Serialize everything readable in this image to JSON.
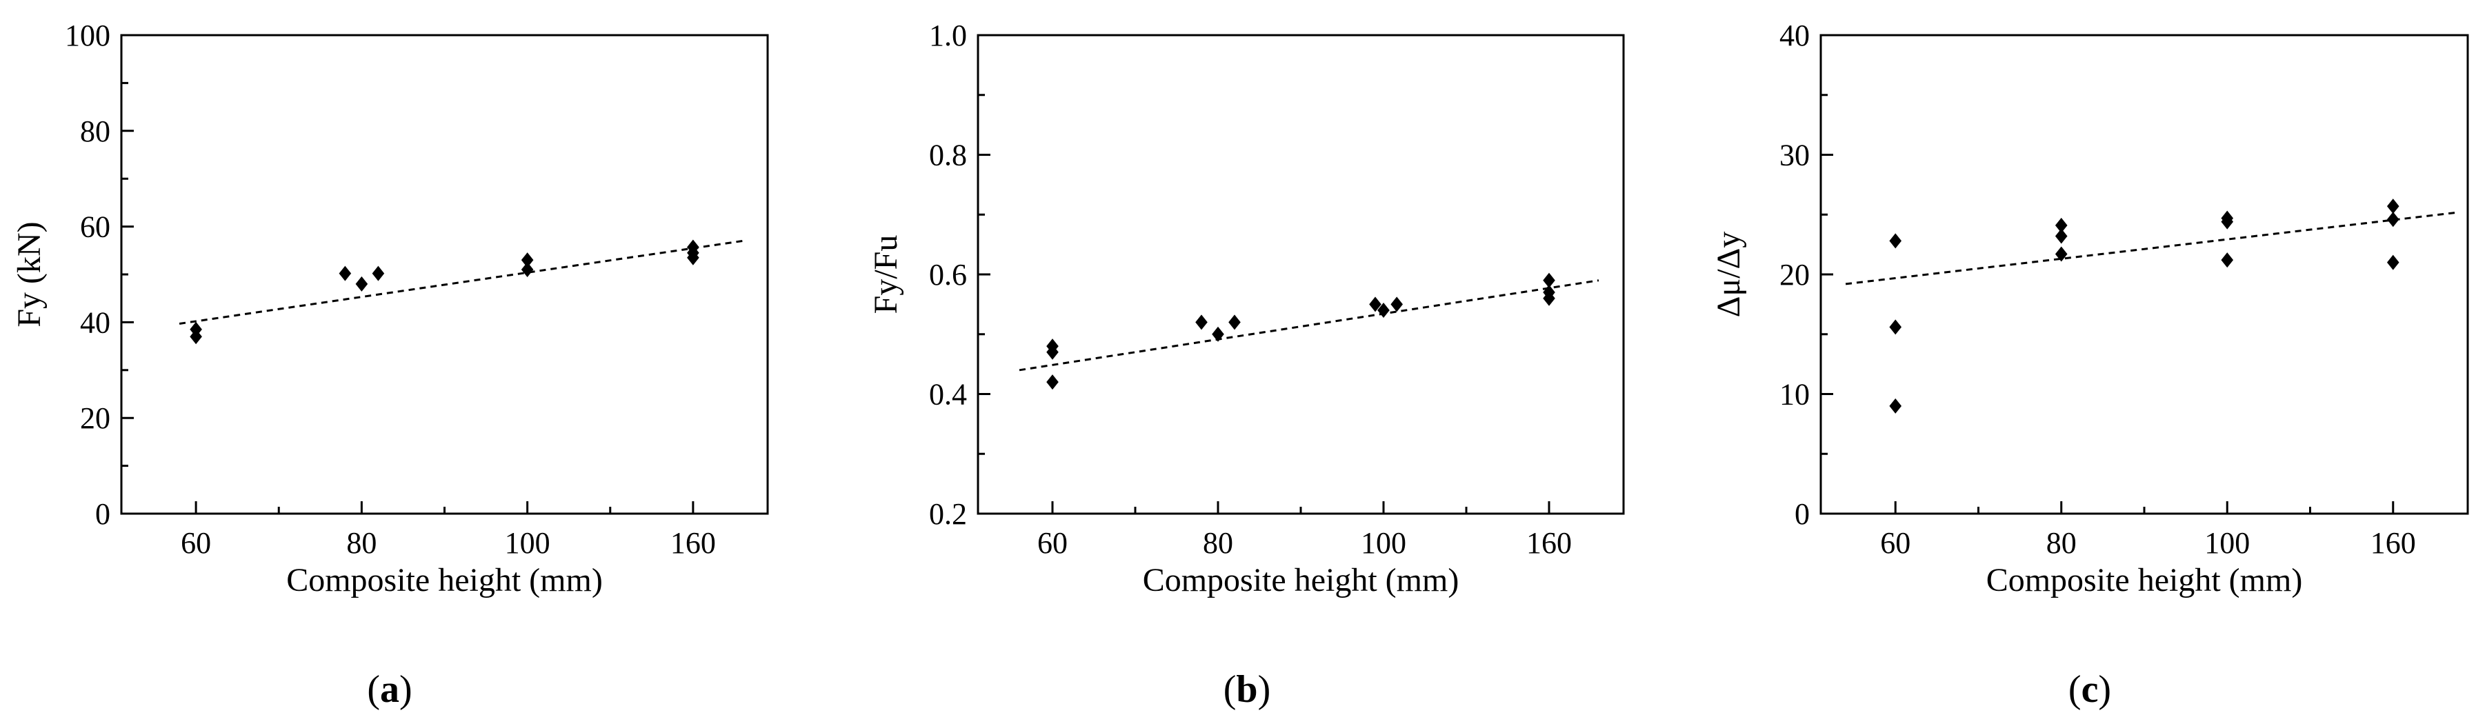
{
  "chart_data": [
    {
      "type": "scatter",
      "panel": "a",
      "panel_label": "(a)",
      "panel_open": "(",
      "panel_letter": "a",
      "panel_close": ")",
      "xlabel": "Composite height (mm)",
      "ylabel": "Fy (kN)",
      "x_categories": [
        "60",
        "80",
        "100",
        "160"
      ],
      "xlim": [
        -0.45,
        3.45
      ],
      "ylim": [
        0,
        100
      ],
      "yticks": [
        0,
        20,
        40,
        60,
        80,
        100
      ],
      "ytick_labels": [
        "0",
        "20",
        "40",
        "60",
        "80",
        "100"
      ],
      "points": [
        {
          "x": 0,
          "y": 38.5
        },
        {
          "x": 0,
          "y": 37
        },
        {
          "x": 0.9,
          "y": 50.2
        },
        {
          "x": 1,
          "y": 48
        },
        {
          "x": 1.1,
          "y": 50.2
        },
        {
          "x": 2,
          "y": 53
        },
        {
          "x": 2,
          "y": 51
        },
        {
          "x": 3,
          "y": 55.7
        },
        {
          "x": 3,
          "y": 54.5
        },
        {
          "x": 3,
          "y": 53.5
        }
      ],
      "fit": {
        "x": [
          -0.1,
          3.3
        ],
        "y": [
          39.7,
          57
        ]
      },
      "color": "#000000"
    },
    {
      "type": "scatter",
      "panel": "b",
      "panel_label": "(b)",
      "panel_open": "(",
      "panel_letter": "b",
      "panel_close": ")",
      "xlabel": "Composite height (mm)",
      "ylabel": "Fy/Fu",
      "x_categories": [
        "60",
        "80",
        "100",
        "160"
      ],
      "xlim": [
        -0.45,
        3.45
      ],
      "ylim": [
        0.2,
        1.0
      ],
      "yticks": [
        0.2,
        0.4,
        0.6,
        0.8,
        1.0
      ],
      "ytick_labels": [
        "0.2",
        "0.4",
        "0.6",
        "0.8",
        "1.0"
      ],
      "points": [
        {
          "x": 0,
          "y": 0.48
        },
        {
          "x": 0,
          "y": 0.47
        },
        {
          "x": 0,
          "y": 0.42
        },
        {
          "x": 0.9,
          "y": 0.52
        },
        {
          "x": 1,
          "y": 0.5
        },
        {
          "x": 1.1,
          "y": 0.52
        },
        {
          "x": 1.95,
          "y": 0.55
        },
        {
          "x": 2,
          "y": 0.54
        },
        {
          "x": 2.08,
          "y": 0.55
        },
        {
          "x": 3,
          "y": 0.59
        },
        {
          "x": 3,
          "y": 0.57
        },
        {
          "x": 3,
          "y": 0.56
        }
      ],
      "fit": {
        "x": [
          -0.2,
          3.3
        ],
        "y": [
          0.44,
          0.59
        ]
      },
      "color": "#000000"
    },
    {
      "type": "scatter",
      "panel": "c",
      "panel_label": "(c)",
      "panel_open": "(",
      "panel_letter": "c",
      "panel_close": ")",
      "xlabel": "Composite height (mm)",
      "ylabel": "Δμ/Δy",
      "x_categories": [
        "60",
        "80",
        "100",
        "160"
      ],
      "xlim": [
        -0.45,
        3.45
      ],
      "ylim": [
        0,
        40
      ],
      "yticks": [
        0,
        10,
        20,
        30,
        40
      ],
      "ytick_labels": [
        "0",
        "10",
        "20",
        "30",
        "40"
      ],
      "points": [
        {
          "x": 0,
          "y": 22.8
        },
        {
          "x": 0,
          "y": 15.6
        },
        {
          "x": 0,
          "y": 9
        },
        {
          "x": 1,
          "y": 24.1
        },
        {
          "x": 1,
          "y": 23.2
        },
        {
          "x": 1,
          "y": 21.7
        },
        {
          "x": 2,
          "y": 24.7
        },
        {
          "x": 2,
          "y": 24.4
        },
        {
          "x": 2,
          "y": 21.2
        },
        {
          "x": 3,
          "y": 25.7
        },
        {
          "x": 3,
          "y": 24.6
        },
        {
          "x": 3,
          "y": 21
        }
      ],
      "fit": {
        "x": [
          -0.3,
          3.4
        ],
        "y": [
          19.2,
          25.2
        ]
      },
      "color": "#000000"
    }
  ]
}
